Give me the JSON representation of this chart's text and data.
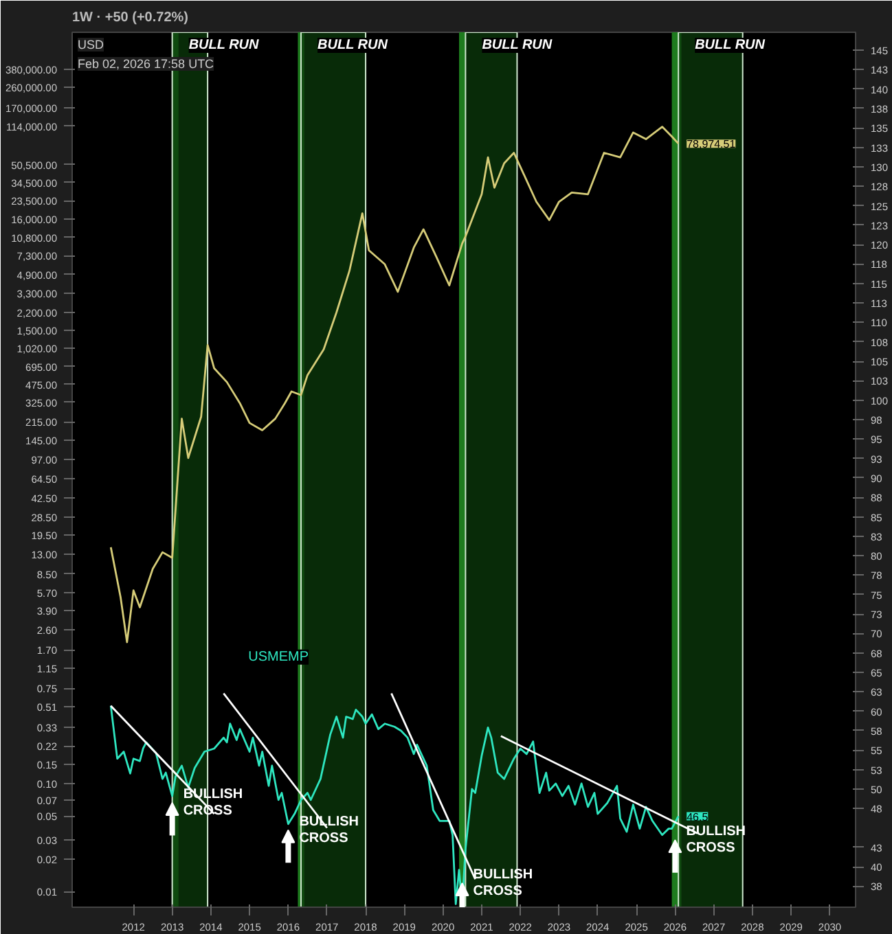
{
  "chart_data": {
    "type": "line",
    "title": "1W · +50 (+0.72%)",
    "annotations": [
      "USD",
      "Feb 02, 2026 17:58 UTC",
      {
        "text": "BULLISH\nCROSS",
        "x": "2013-01",
        "y": 0.066
      },
      {
        "text": "BULLISH\nCROSS",
        "x": "2016-01",
        "y": 0.037
      },
      {
        "text": "BULLISH\nCROSS",
        "x": "2020-07",
        "y": 0.012
      },
      {
        "text": "BULLISH\nCROSS",
        "x": "2026-01",
        "y": 0.03
      }
    ],
    "log": "y",
    "grid": false,
    "xlim": [
      "2010-06",
      "2030-09"
    ],
    "xticks": [
      {
        "value": "2012",
        "label": "2012"
      },
      {
        "value": "2013",
        "label": "2013"
      },
      {
        "value": "2014",
        "label": "2014"
      },
      {
        "value": "2015",
        "label": "2015"
      },
      {
        "value": "2016",
        "label": "2016"
      },
      {
        "value": "2017",
        "label": "2017"
      },
      {
        "value": "2018",
        "label": "2018"
      },
      {
        "value": "2019",
        "label": "2019"
      },
      {
        "value": "2020",
        "label": "2020"
      },
      {
        "value": "2021",
        "label": "2021"
      },
      {
        "value": "2022",
        "label": "2022"
      },
      {
        "value": "2023",
        "label": "2023"
      },
      {
        "value": "2024",
        "label": "2024"
      },
      {
        "value": "2025",
        "label": "2025"
      },
      {
        "value": "2026",
        "label": "2026"
      },
      {
        "value": "2027",
        "label": "2027"
      },
      {
        "value": "2028",
        "label": "2028"
      },
      {
        "value": "2029",
        "label": "2029"
      },
      {
        "value": "2030",
        "label": "2030"
      }
    ],
    "ylim": [
      0.0072,
      840000
    ],
    "yticks": [
      {
        "value": 380000,
        "label": "380,000.00"
      },
      {
        "value": 260000,
        "label": "260,000.00"
      },
      {
        "value": 170000,
        "label": "170,000.00"
      },
      {
        "value": 114000,
        "label": "114,000.00"
      },
      {
        "value": 50500,
        "label": "50,500.00"
      },
      {
        "value": 34500,
        "label": "34,500.00"
      },
      {
        "value": 23500,
        "label": "23,500.00"
      },
      {
        "value": 16000,
        "label": "16,000.00"
      },
      {
        "value": 10800,
        "label": "10,800.00"
      },
      {
        "value": 7300,
        "label": "7,300.00"
      },
      {
        "value": 4900,
        "label": "4,900.00"
      },
      {
        "value": 3300,
        "label": "3,300.00"
      },
      {
        "value": 2200,
        "label": "2,200.00"
      },
      {
        "value": 1500,
        "label": "1,500.00"
      },
      {
        "value": 1020,
        "label": "1,020.00"
      },
      {
        "value": 695,
        "label": "695.00"
      },
      {
        "value": 475,
        "label": "475.00"
      },
      {
        "value": 325,
        "label": "325.00"
      },
      {
        "value": 215,
        "label": "215.00"
      },
      {
        "value": 145,
        "label": "145.00"
      },
      {
        "value": 97,
        "label": "97.00"
      },
      {
        "value": 64.5,
        "label": "64.50"
      },
      {
        "value": 42.5,
        "label": "42.50"
      },
      {
        "value": 28.5,
        "label": "28.50"
      },
      {
        "value": 19.5,
        "label": "19.50"
      },
      {
        "value": 13,
        "label": "13.00"
      },
      {
        "value": 8.5,
        "label": "8.50"
      },
      {
        "value": 5.7,
        "label": "5.70"
      },
      {
        "value": 3.9,
        "label": "3.90"
      },
      {
        "value": 2.6,
        "label": "2.60"
      },
      {
        "value": 1.7,
        "label": "1.70"
      },
      {
        "value": 1.15,
        "label": "1.15"
      },
      {
        "value": 0.75,
        "label": "0.75"
      },
      {
        "value": 0.51,
        "label": "0.51"
      },
      {
        "value": 0.33,
        "label": "0.33"
      },
      {
        "value": 0.22,
        "label": "0.22"
      },
      {
        "value": 0.15,
        "label": "0.15"
      },
      {
        "value": 0.1,
        "label": "0.10"
      },
      {
        "value": 0.07,
        "label": "0.07"
      },
      {
        "value": 0.05,
        "label": "0.05"
      },
      {
        "value": 0.03,
        "label": "0.03"
      },
      {
        "value": 0.02,
        "label": "0.02"
      },
      {
        "value": 0.01,
        "label": "0.01"
      }
    ],
    "y2lim": [
      34.8,
      147.3
    ],
    "y2ticks": [
      145,
      {
        "value": 142.5,
        "label": "143"
      },
      140,
      {
        "value": 137.5,
        "label": "138"
      },
      135,
      {
        "value": 132.5,
        "label": "133"
      },
      130,
      {
        "value": 127.5,
        "label": "128"
      },
      125,
      {
        "value": 122.5,
        "label": "123"
      },
      120,
      {
        "value": 117.5,
        "label": "118"
      },
      115,
      {
        "value": 112.5,
        "label": "113"
      },
      110,
      {
        "value": 107.5,
        "label": "108"
      },
      105,
      {
        "value": 102.5,
        "label": "103"
      },
      100,
      {
        "value": 97.5,
        "label": "98"
      },
      95,
      {
        "value": 92.5,
        "label": "93"
      },
      90,
      {
        "value": 87.5,
        "label": "88"
      },
      85,
      {
        "value": 82.5,
        "label": "83"
      },
      80,
      {
        "value": 77.5,
        "label": "78"
      },
      75,
      {
        "value": 72.5,
        "label": "73"
      },
      70,
      {
        "value": 67.5,
        "label": "68"
      },
      65,
      {
        "value": 62.5,
        "label": "63"
      },
      60,
      {
        "value": 57.5,
        "label": "58"
      },
      55,
      {
        "value": 52.5,
        "label": "53"
      },
      50,
      {
        "value": 47.5,
        "label": "48"
      },
      {
        "value": 42.5,
        "label": "43"
      },
      40,
      {
        "value": 37.5,
        "label": "38"
      }
    ],
    "bands": [
      {
        "axis": "x",
        "from": "2013-01",
        "to": "2013-03",
        "color": "#1e7b1e"
      },
      {
        "axis": "x",
        "from": "2016-04",
        "to": "2016-06",
        "color": "#1e7b1e"
      },
      {
        "axis": "x",
        "from": "2020-06",
        "to": "2020-08",
        "color": "#1e7b1e"
      },
      {
        "axis": "x",
        "from": "2025-12",
        "to": "2026-03",
        "color": "#1e7b1e"
      },
      {
        "axis": "x",
        "from": "2013-01",
        "to": "2013-12",
        "label": "BULL RUN",
        "color": "#0b3a0b"
      },
      {
        "axis": "x",
        "from": "2016-05",
        "to": "2018-01",
        "label": "BULL RUN",
        "color": "#0b3a0b"
      },
      {
        "axis": "x",
        "from": "2020-08",
        "to": "2021-12",
        "label": "BULL RUN",
        "color": "#0b3a0b"
      },
      {
        "axis": "x",
        "from": "2026-02",
        "to": "2027-10",
        "label": "BULL RUN",
        "color": "#0b3a0b"
      }
    ],
    "series": [
      {
        "color": "#d6cc78",
        "x": [
          "2011-06",
          "2011-09",
          "2011-11",
          "2012-01",
          "2012-03",
          "2012-07",
          "2012-10",
          "2013-01",
          "2013-04",
          "2013-06",
          "2013-10",
          "2013-12",
          "2014-02",
          "2014-06",
          "2014-10",
          "2015-01",
          "2015-05",
          "2015-09",
          "2015-12",
          "2016-02",
          "2016-05",
          "2016-07",
          "2016-12",
          "2017-04",
          "2017-08",
          "2017-12",
          "2018-02",
          "2018-07",
          "2018-11",
          "2019-04",
          "2019-07",
          "2019-11",
          "2020-03",
          "2020-07",
          "2020-08",
          "2021-01",
          "2021-03",
          "2021-05",
          "2021-08",
          "2021-11",
          "2022-02",
          "2022-06",
          "2022-10",
          "2023-01",
          "2023-05",
          "2023-10",
          "2024-03",
          "2024-08",
          "2024-12",
          "2025-04",
          "2025-09",
          "2025-12",
          "2026-02"
        ],
        "values": [
          15,
          5.2,
          2.0,
          6.0,
          4.2,
          9.5,
          13.5,
          12,
          230,
          100,
          240,
          1100,
          670,
          500,
          320,
          210,
          180,
          230,
          320,
          410,
          380,
          580,
          1000,
          2200,
          5300,
          18000,
          8200,
          6100,
          3400,
          8700,
          12800,
          7100,
          3900,
          9500,
          11000,
          27000,
          59000,
          31000,
          52000,
          65000,
          41500,
          23000,
          15600,
          23000,
          28000,
          27000,
          65000,
          59000,
          100000,
          87000,
          113000,
          92000,
          78974.51
        ],
        "value_labels": [
          null,
          null,
          null,
          null,
          null,
          null,
          null,
          null,
          null,
          null,
          null,
          null,
          null,
          null,
          null,
          null,
          null,
          null,
          null,
          null,
          null,
          null,
          null,
          null,
          null,
          null,
          null,
          null,
          null,
          null,
          null,
          null,
          null,
          null,
          null,
          null,
          null,
          null,
          null,
          null,
          null,
          null,
          null,
          null,
          null,
          null,
          null,
          null,
          null,
          null,
          null,
          null,
          "78,974.51"
        ]
      },
      {
        "name": "USMEMP",
        "color": "#2ee6c0",
        "axis": "y2",
        "x": [
          "2011-06",
          "2011-08",
          "2011-10",
          "2011-12",
          "2012-01",
          "2012-03",
          "2012-04",
          "2012-05",
          "2012-08",
          "2012-10",
          "2012-11",
          "2013-01",
          "2013-02",
          "2013-04",
          "2013-06",
          "2013-08",
          "2013-11",
          "2014-02",
          "2014-05",
          "2014-06",
          "2014-07",
          "2014-09",
          "2014-10",
          "2015-01",
          "2015-02",
          "2015-04",
          "2015-05",
          "2015-07",
          "2015-08",
          "2015-10",
          "2015-11",
          "2016-01",
          "2016-03",
          "2016-05",
          "2016-07",
          "2016-08",
          "2016-11",
          "2017-02",
          "2017-04",
          "2017-06",
          "2017-07",
          "2017-09",
          "2017-10",
          "2017-12",
          "2018-01",
          "2018-03",
          "2018-05",
          "2018-07",
          "2018-10",
          "2018-12",
          "2019-02",
          "2019-04",
          "2019-05",
          "2019-08",
          "2019-10",
          "2019-12",
          "2020-03",
          "2020-04",
          "2020-05",
          "2020-06",
          "2020-07",
          "2020-08",
          "2020-10",
          "2020-11",
          "2021-01",
          "2021-03",
          "2021-04",
          "2021-06",
          "2021-08",
          "2021-11",
          "2022-01",
          "2022-03",
          "2022-05",
          "2022-07",
          "2022-09",
          "2022-10",
          "2022-12",
          "2023-02",
          "2023-04",
          "2023-06",
          "2023-08",
          "2023-10",
          "2023-12",
          "2024-01",
          "2024-04",
          "2024-07",
          "2024-08",
          "2024-10",
          "2024-12",
          "2025-02",
          "2025-04",
          "2025-06",
          "2025-09",
          "2025-11",
          "2025-12",
          "2026-02"
        ],
        "values": [
          60.7,
          53.9,
          54.8,
          52.0,
          53.9,
          53.6,
          55.2,
          56.0,
          54.6,
          51.3,
          52.1,
          49.1,
          51.6,
          53.0,
          50.2,
          52.7,
          54.8,
          55.2,
          56.6,
          56.0,
          58.4,
          56.3,
          57.7,
          54.8,
          56.6,
          53.0,
          54.8,
          50.4,
          53.0,
          48.6,
          49.5,
          45.5,
          46.8,
          48.6,
          49.5,
          48.6,
          51.3,
          57.0,
          59.3,
          56.6,
          59.3,
          59.0,
          60.2,
          59.3,
          58.4,
          59.6,
          57.7,
          58.4,
          58.0,
          57.5,
          56.6,
          54.5,
          55.7,
          53.0,
          47.3,
          45.9,
          45.9,
          44.1,
          35.2,
          39.6,
          35.2,
          42.3,
          50.0,
          49.5,
          54.3,
          57.9,
          56.6,
          52.1,
          51.3,
          53.9,
          55.2,
          54.5,
          56.1,
          49.5,
          52.1,
          49.8,
          50.7,
          49.1,
          50.4,
          48.0,
          50.7,
          47.7,
          49.5,
          46.8,
          48.2,
          50.4,
          46.2,
          44.5,
          48.0,
          44.9,
          47.7,
          45.9,
          44.1,
          44.9,
          44.9,
          46.5
        ],
        "value_labels": [
          null,
          null,
          null,
          null,
          null,
          null,
          null,
          null,
          null,
          null,
          null,
          null,
          null,
          null,
          null,
          null,
          null,
          null,
          null,
          null,
          null,
          null,
          null,
          null,
          null,
          null,
          null,
          null,
          null,
          null,
          null,
          null,
          null,
          null,
          null,
          null,
          null,
          null,
          null,
          null,
          null,
          null,
          null,
          null,
          null,
          null,
          null,
          null,
          null,
          null,
          null,
          null,
          null,
          null,
          null,
          null,
          null,
          null,
          null,
          null,
          null,
          null,
          null,
          null,
          null,
          null,
          null,
          null,
          null,
          null,
          null,
          null,
          null,
          null,
          null,
          null,
          null,
          null,
          null,
          null,
          null,
          null,
          null,
          null,
          null,
          null,
          null,
          null,
          null,
          null,
          null,
          null,
          null,
          null,
          null,
          "46.5"
        ]
      },
      {
        "color": "#ffffff",
        "axis": "y2",
        "x": [
          "2011-06",
          "2014-02"
        ],
        "values": [
          60.7,
          46.8
        ]
      },
      {
        "color": "#ffffff",
        "axis": "y2",
        "x": [
          "2014-05",
          "2017-01"
        ],
        "values": [
          62.3,
          45.0
        ]
      },
      {
        "color": "#ffffff",
        "axis": "y2",
        "x": [
          "2018-09",
          "2020-11"
        ],
        "values": [
          62.3,
          38.4
        ]
      },
      {
        "color": "#ffffff",
        "axis": "y2",
        "x": [
          "2021-07",
          "2026-08"
        ],
        "values": [
          56.8,
          44.3
        ]
      }
    ]
  }
}
